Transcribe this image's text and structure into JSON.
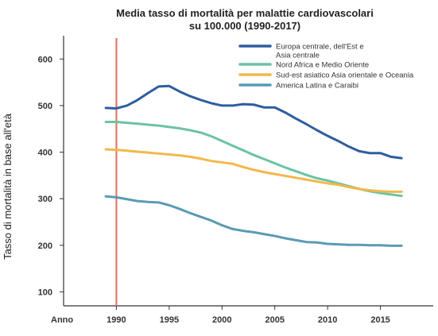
{
  "chart_data": {
    "type": "line",
    "title_lines": [
      "Media tasso di mortalità per malattie cardiovascolari",
      "su 100.000 (1990-2017)"
    ],
    "ylabel": "Tasso di mortalità in base all'età",
    "x_axis_prefix": "Anno",
    "ylim": [
      70,
      650
    ],
    "xlim": [
      1985,
      2020
    ],
    "y_ticks": [
      100,
      200,
      300,
      400,
      500,
      600
    ],
    "x_ticks": [
      1990,
      1995,
      2000,
      2005,
      2010,
      2015
    ],
    "grid": false,
    "legend_position": "top-right",
    "reference_line": {
      "x": 1990,
      "color": "#d97a66"
    },
    "series": [
      {
        "name_lines": [
          "Europa centrale, dell'Est e",
          "Asia centrale"
        ],
        "color": "#2e5d9f",
        "x": [
          1989,
          1990,
          1991,
          1992,
          1993,
          1994,
          1995,
          1996,
          1997,
          1998,
          1999,
          2000,
          2001,
          2002,
          2003,
          2004,
          2005,
          2006,
          2007,
          2008,
          2009,
          2010,
          2011,
          2012,
          2013,
          2014,
          2015,
          2016,
          2017
        ],
        "values": [
          495,
          494,
          500,
          512,
          527,
          541,
          542,
          530,
          520,
          512,
          505,
          500,
          500,
          503,
          502,
          496,
          496,
          485,
          472,
          460,
          447,
          435,
          424,
          412,
          402,
          398,
          398,
          390,
          387
        ]
      },
      {
        "name_lines": [
          "Nord Africa e Medio Oriente"
        ],
        "color": "#6cc2a6",
        "x": [
          1989,
          1990,
          1991,
          1992,
          1993,
          1994,
          1995,
          1996,
          1997,
          1998,
          1999,
          2000,
          2001,
          2002,
          2003,
          2004,
          2005,
          2006,
          2007,
          2008,
          2009,
          2010,
          2011,
          2012,
          2013,
          2014,
          2015,
          2016,
          2017
        ],
        "values": [
          465,
          465,
          463,
          461,
          459,
          457,
          454,
          451,
          447,
          442,
          434,
          424,
          414,
          404,
          394,
          385,
          376,
          367,
          359,
          351,
          344,
          339,
          333,
          327,
          321,
          316,
          312,
          309,
          306
        ]
      },
      {
        "name_lines": [
          "Sud-est asiatico Asia orientale e Oceania"
        ],
        "color": "#f2b84b",
        "x": [
          1989,
          1990,
          1991,
          1992,
          1993,
          1994,
          1995,
          1996,
          1997,
          1998,
          1999,
          2000,
          2001,
          2002,
          2003,
          2004,
          2005,
          2006,
          2007,
          2008,
          2009,
          2010,
          2011,
          2012,
          2013,
          2014,
          2015,
          2016,
          2017
        ],
        "values": [
          406,
          405,
          403,
          401,
          399,
          397,
          395,
          393,
          390,
          386,
          381,
          378,
          375,
          368,
          362,
          357,
          353,
          349,
          345,
          341,
          337,
          333,
          330,
          325,
          321,
          318,
          316,
          315,
          315
        ]
      },
      {
        "name_lines": [
          "America Latina e Caraibi"
        ],
        "color": "#5b9ab5",
        "x": [
          1989,
          1990,
          1991,
          1992,
          1993,
          1994,
          1995,
          1996,
          1997,
          1998,
          1999,
          2000,
          2001,
          2002,
          2003,
          2004,
          2005,
          2006,
          2007,
          2008,
          2009,
          2010,
          2011,
          2012,
          2013,
          2014,
          2015,
          2016,
          2017
        ],
        "values": [
          305,
          303,
          299,
          295,
          293,
          292,
          286,
          278,
          269,
          261,
          253,
          243,
          235,
          231,
          228,
          224,
          220,
          215,
          211,
          207,
          206,
          203,
          202,
          201,
          201,
          200,
          200,
          199,
          199
        ]
      }
    ]
  }
}
